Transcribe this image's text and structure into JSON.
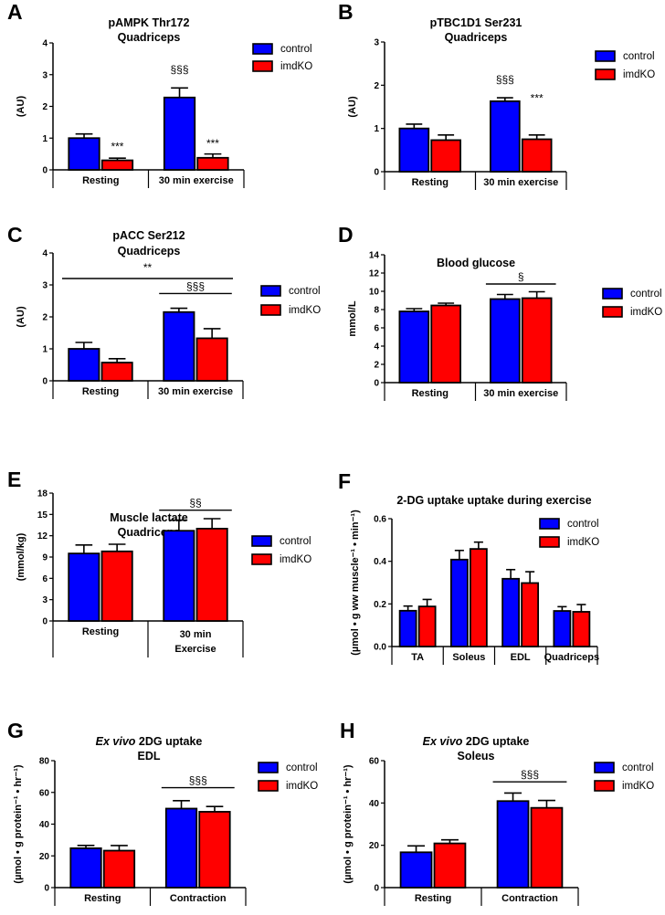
{
  "legend": [
    "control",
    "imdKO"
  ],
  "colors": {
    "control": "#0000ff",
    "imdKO": "#ff0000",
    "outline": "#000000"
  },
  "chart_data": [
    {
      "panel": "A",
      "type": "bar",
      "title": [
        "pAMPK Thr172",
        "Quadriceps"
      ],
      "ylabel": "(AU)",
      "ylim": [
        0,
        4
      ],
      "yticks": [
        "0",
        "1",
        "2",
        "3",
        "4"
      ],
      "categories": [
        "Resting",
        "30 min exercise"
      ],
      "series": [
        {
          "name": "control",
          "values": [
            1.0,
            2.28
          ],
          "errors": [
            0.13,
            0.3
          ]
        },
        {
          "name": "imdKO",
          "values": [
            0.3,
            0.38
          ],
          "errors": [
            0.07,
            0.12
          ]
        }
      ],
      "annotations": [
        {
          "text": "***",
          "group": 0,
          "series": 1,
          "y": 0.62
        },
        {
          "text": "§§§",
          "group": 1,
          "series": 0,
          "y": 3.05
        },
        {
          "text": "***",
          "group": 1,
          "series": 1,
          "y": 0.72
        }
      ],
      "sig_lines": []
    },
    {
      "panel": "B",
      "type": "bar",
      "title": [
        "pTBC1D1 Ser231",
        "Quadriceps"
      ],
      "ylabel": "(AU)",
      "ylim": [
        0,
        3
      ],
      "yticks": [
        "0",
        "1",
        "2",
        "3"
      ],
      "categories": [
        "Resting",
        "30 min exercise"
      ],
      "series": [
        {
          "name": "control",
          "values": [
            1.0,
            1.63
          ],
          "errors": [
            0.1,
            0.08
          ]
        },
        {
          "name": "imdKO",
          "values": [
            0.73,
            0.75
          ],
          "errors": [
            0.12,
            0.1
          ]
        }
      ],
      "annotations": [
        {
          "text": "§§§",
          "group": 1,
          "series": 0,
          "y": 2.05
        },
        {
          "text": "***",
          "group": 1,
          "series": 1,
          "y": 1.62
        }
      ],
      "sig_lines": []
    },
    {
      "panel": "C",
      "type": "bar",
      "title": [
        "pACC Ser212",
        "Quadriceps"
      ],
      "ylabel": "(AU)",
      "ylim": [
        0,
        4
      ],
      "yticks": [
        "0",
        "1",
        "2",
        "3",
        "4"
      ],
      "categories": [
        "Resting",
        "30 min exercise"
      ],
      "series": [
        {
          "name": "control",
          "values": [
            1.0,
            2.15
          ],
          "errors": [
            0.2,
            0.12
          ]
        },
        {
          "name": "imdKO",
          "values": [
            0.57,
            1.33
          ],
          "errors": [
            0.12,
            0.3
          ]
        }
      ],
      "annotations": [],
      "sig_lines": [
        {
          "text": "**",
          "from": 0,
          "to": 1,
          "y": 3.2
        },
        {
          "text": "§§§",
          "from": 1,
          "to": 1,
          "y": 2.73
        }
      ]
    },
    {
      "panel": "D",
      "type": "bar",
      "title": [
        "Blood glucose"
      ],
      "ylabel": "mmol/L",
      "ylim": [
        0,
        14
      ],
      "yticks": [
        "0",
        "2",
        "4",
        "6",
        "8",
        "10",
        "12",
        "14"
      ],
      "categories": [
        "Resting",
        "30 min exercise"
      ],
      "series": [
        {
          "name": "control",
          "values": [
            7.8,
            9.15
          ],
          "errors": [
            0.3,
            0.5
          ]
        },
        {
          "name": "imdKO",
          "values": [
            8.45,
            9.25
          ],
          "errors": [
            0.25,
            0.7
          ]
        }
      ],
      "annotations": [],
      "sig_lines": [
        {
          "text": "§",
          "from": 1,
          "to": 1,
          "y": 10.8
        }
      ]
    },
    {
      "panel": "E",
      "type": "bar",
      "title": [
        "Muscle lactate",
        "Quadriceps"
      ],
      "ylabel": "(mmol/kg)",
      "ylim": [
        0,
        18
      ],
      "yticks": [
        "0",
        "3",
        "6",
        "9",
        "12",
        "15",
        "18"
      ],
      "categories": [
        "Resting",
        "30 min\nExercise"
      ],
      "series": [
        {
          "name": "control",
          "values": [
            9.5,
            12.7
          ],
          "errors": [
            1.2,
            1.5
          ]
        },
        {
          "name": "imdKO",
          "values": [
            9.8,
            13.0
          ],
          "errors": [
            1.0,
            1.4
          ]
        }
      ],
      "annotations": [],
      "sig_lines": [
        {
          "text": "§§",
          "from": 1,
          "to": 1,
          "y": 15.6
        }
      ]
    },
    {
      "panel": "F",
      "type": "bar",
      "title": [
        "2-DG uptake uptake during exercise"
      ],
      "ylabel": "(µmol • g ww  muscle⁻¹ • min⁻¹)",
      "ylim": [
        0,
        0.6
      ],
      "yticks": [
        "0.0",
        "0.2",
        "0.4",
        "0.6"
      ],
      "categories": [
        "TA",
        "Soleus",
        "EDL",
        "Quadriceps"
      ],
      "series": [
        {
          "name": "control",
          "values": [
            0.168,
            0.408,
            0.318,
            0.167
          ],
          "errors": [
            0.022,
            0.043,
            0.043,
            0.02
          ]
        },
        {
          "name": "imdKO",
          "values": [
            0.188,
            0.458,
            0.298,
            0.163
          ],
          "errors": [
            0.033,
            0.032,
            0.053,
            0.034
          ]
        }
      ],
      "annotations": [],
      "sig_lines": []
    },
    {
      "panel": "G",
      "type": "bar",
      "title_italic": "Ex vivo",
      "title": [
        " 2DG uptake",
        "EDL"
      ],
      "ylabel": "(µmol • g protein⁻¹ • hr⁻¹)",
      "ylim": [
        0,
        80
      ],
      "yticks": [
        "0",
        "20",
        "40",
        "60",
        "80"
      ],
      "categories": [
        "Resting",
        "Contraction"
      ],
      "series": [
        {
          "name": "control",
          "values": [
            24.8,
            49.8
          ],
          "errors": [
            1.8,
            5.0
          ]
        },
        {
          "name": "imdKO",
          "values": [
            23.3,
            47.8
          ],
          "errors": [
            3.2,
            3.3
          ]
        }
      ],
      "annotations": [],
      "sig_lines": [
        {
          "text": "§§§",
          "from": 1,
          "to": 1,
          "y": 63
        }
      ]
    },
    {
      "panel": "H",
      "type": "bar",
      "title_italic": "Ex vivo",
      "title": [
        " 2DG uptake",
        "Soleus"
      ],
      "ylabel": "(µmol • g protein⁻¹ • hr⁻¹)",
      "ylim": [
        0,
        60
      ],
      "yticks": [
        "0",
        "20",
        "40",
        "60"
      ],
      "categories": [
        "Resting",
        "Contraction"
      ],
      "series": [
        {
          "name": "control",
          "values": [
            16.7,
            40.9
          ],
          "errors": [
            3.0,
            3.8
          ]
        },
        {
          "name": "imdKO",
          "values": [
            20.9,
            37.7
          ],
          "errors": [
            1.7,
            3.5
          ]
        }
      ],
      "annotations": [],
      "sig_lines": [
        {
          "text": "§§§",
          "from": 1,
          "to": 1,
          "y": 50
        }
      ]
    }
  ]
}
